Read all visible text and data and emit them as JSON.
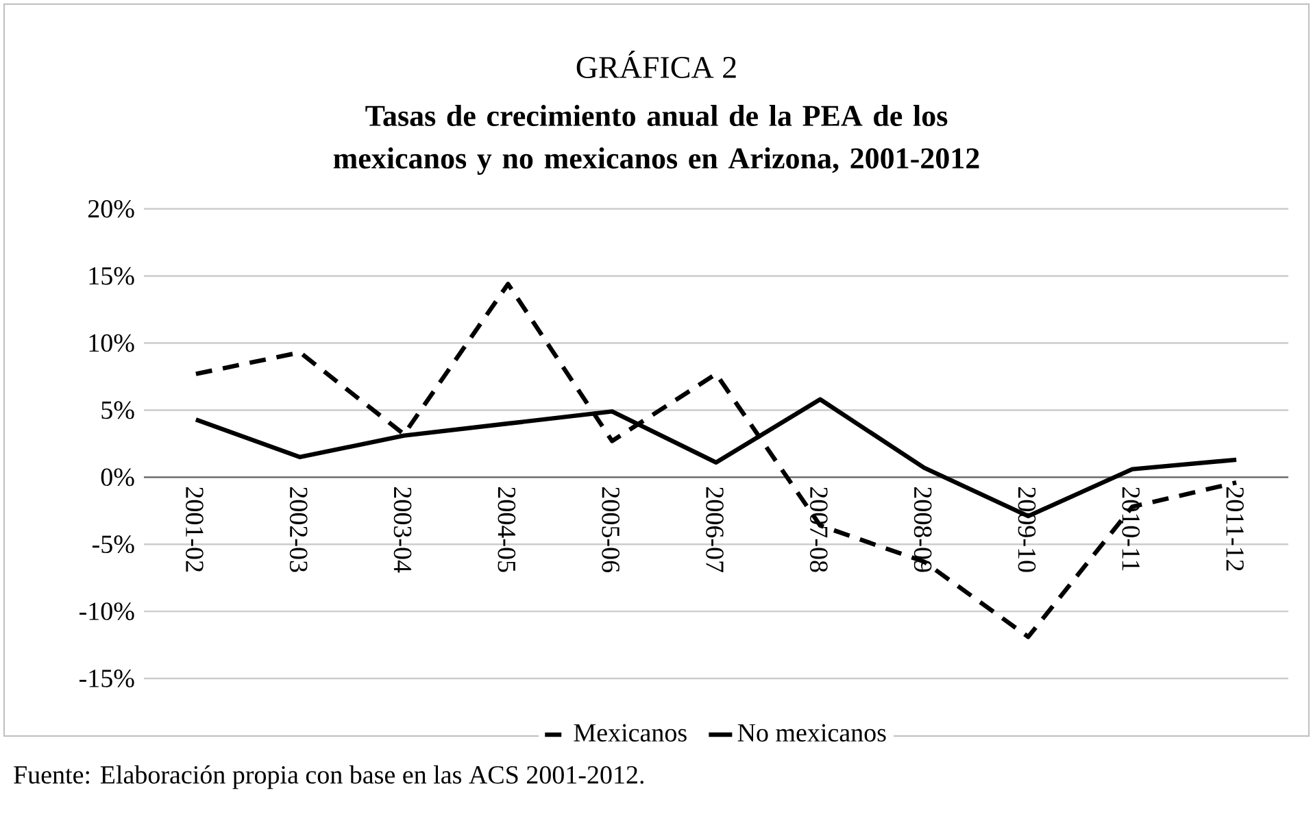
{
  "chart_data": {
    "type": "line",
    "title": "GRÁFICA 2",
    "subtitle": "Tasas de crecimiento anual de la PEA de los mexicanos y no mexicanos en Arizona, 2001-2012",
    "categories": [
      "2001-02",
      "2002-03",
      "2003-04",
      "2004-05",
      "2005-06",
      "2006-07",
      "2007-08",
      "2008-09",
      "2009-10",
      "2010-11",
      "2011-12"
    ],
    "series": [
      {
        "name": "Mexicanos",
        "color": "#000000",
        "line_style": "dashed",
        "values": [
          7.7,
          9.3,
          3.2,
          14.4,
          2.7,
          7.7,
          -3.6,
          -6.3,
          -11.9,
          -2.2,
          -0.4
        ]
      },
      {
        "name": "No mexicanos",
        "color": "#000000",
        "line_style": "solid",
        "values": [
          4.3,
          1.5,
          3.1,
          4.0,
          4.9,
          1.1,
          5.8,
          0.7,
          -2.9,
          0.6,
          1.3
        ]
      }
    ],
    "ylim": [
      -15,
      20
    ],
    "yticks": [
      {
        "value": -15,
        "label": "-15%"
      },
      {
        "value": -10,
        "label": "-10%"
      },
      {
        "value": -5,
        "label": "-5%"
      },
      {
        "value": 0,
        "label": "0%"
      },
      {
        "value": 5,
        "label": "5%"
      },
      {
        "value": 10,
        "label": "10%"
      },
      {
        "value": 15,
        "label": "15%"
      },
      {
        "value": 20,
        "label": "20%"
      }
    ],
    "grid": "y",
    "legend": "bottom",
    "marker": "none",
    "annotations": [
      "Fuente: Elaboración propia con base en las ACS 2001-2012."
    ]
  }
}
